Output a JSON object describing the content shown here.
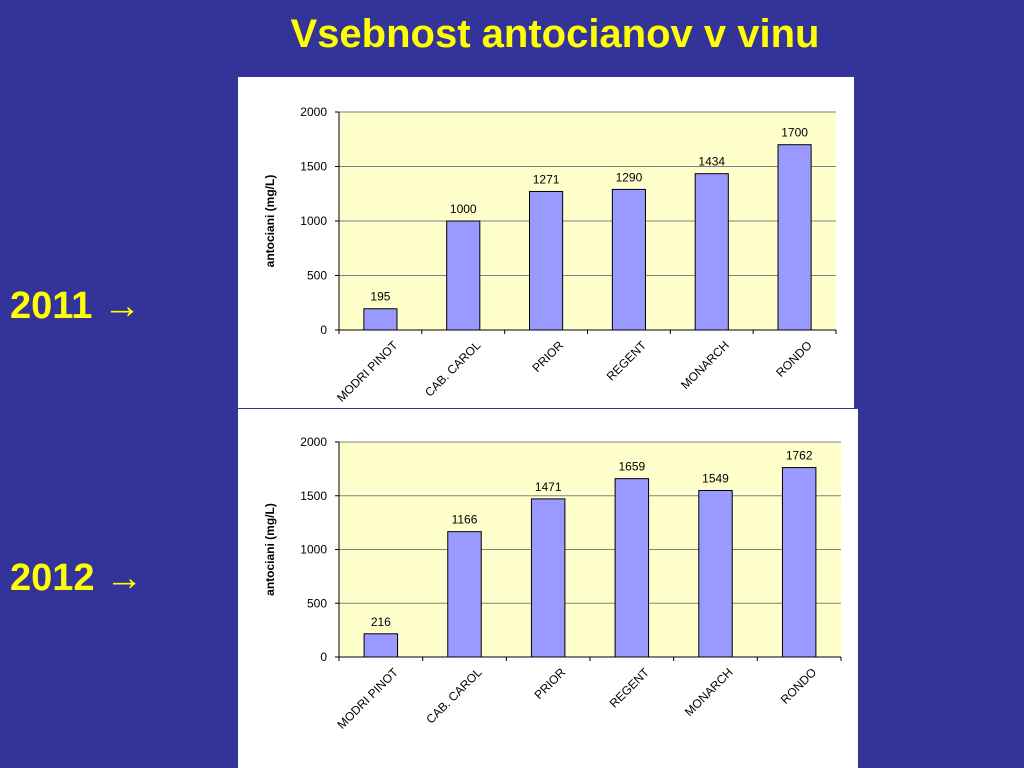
{
  "slide": {
    "title": "Vsebnost antocianov v vinu",
    "labels": [
      {
        "year": "2011",
        "arrow": "→"
      },
      {
        "year": "2012",
        "arrow": "→"
      }
    ]
  },
  "colors": {
    "background": "#333399",
    "title": "#ffff00",
    "plot_area": "#ffffcc",
    "bar_fill": "#9999ff",
    "bar_stroke": "#000000"
  },
  "chart_data": [
    {
      "type": "bar",
      "title": "",
      "xlabel": "",
      "ylabel": "antociani (mg/L)",
      "categories": [
        "MODRI PINOT",
        "CAB. CAROL",
        "PRIOR",
        "REGENT",
        "MONARCH",
        "RONDO"
      ],
      "values": [
        195,
        1000,
        1271,
        1290,
        1434,
        1700
      ],
      "ylim": [
        0,
        2000
      ],
      "yticks": [
        0,
        500,
        1000,
        1500,
        2000
      ],
      "grid": true,
      "data_labels": true
    },
    {
      "type": "bar",
      "title": "",
      "xlabel": "",
      "ylabel": "antociani (mg/L)",
      "categories": [
        "MODRI PINOT",
        "CAB. CAROL",
        "PRIOR",
        "REGENT",
        "MONARCH",
        "RONDO"
      ],
      "values": [
        216,
        1166,
        1471,
        1659,
        1549,
        1762
      ],
      "ylim": [
        0,
        2000
      ],
      "yticks": [
        0,
        500,
        1000,
        1500,
        2000
      ],
      "grid": true,
      "data_labels": true
    }
  ]
}
